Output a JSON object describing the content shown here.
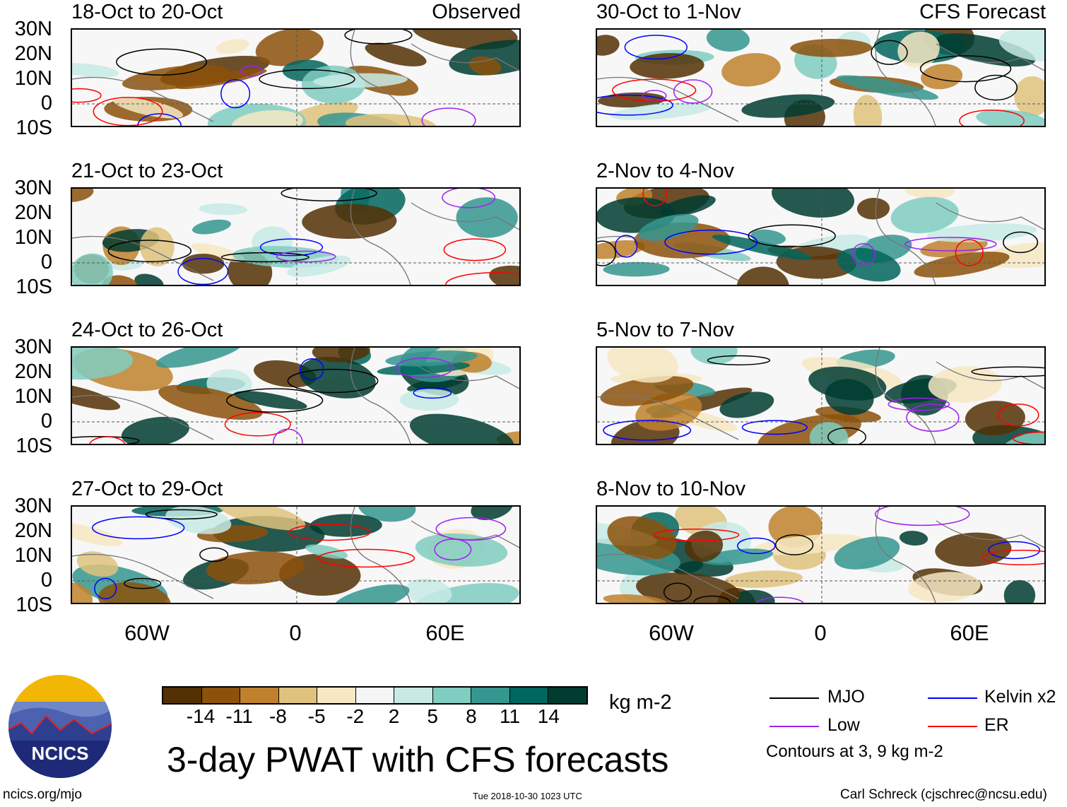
{
  "panels": {
    "left": [
      {
        "title": "18-Oct to 20-Oct",
        "tag": "Observed"
      },
      {
        "title": "21-Oct to 23-Oct"
      },
      {
        "title": "24-Oct to 26-Oct"
      },
      {
        "title": "27-Oct to 29-Oct"
      }
    ],
    "right": [
      {
        "title": "30-Oct to 1-Nov",
        "tag": "CFS Forecast"
      },
      {
        "title": "2-Nov to 4-Nov"
      },
      {
        "title": "5-Nov to 7-Nov"
      },
      {
        "title": "8-Nov to 10-Nov"
      }
    ]
  },
  "lat_labels": [
    "30N",
    "20N",
    "10N",
    "0",
    "10S"
  ],
  "lon_labels": [
    "60W",
    "0",
    "60E"
  ],
  "colorbar": {
    "colors": [
      "#543005",
      "#8c510a",
      "#bf812d",
      "#dfc27d",
      "#f6e8c3",
      "#f5f5f5",
      "#c7eae5",
      "#80cdc1",
      "#35978f",
      "#01665e",
      "#003c30"
    ],
    "levels": [
      "-14",
      "-11",
      "-8",
      "-5",
      "-2",
      "2",
      "5",
      "8",
      "11",
      "14"
    ],
    "units": "kg m-2"
  },
  "title": "3-day PWAT with CFS forecasts",
  "legend": {
    "items": [
      {
        "label": "MJO",
        "color": "#000000"
      },
      {
        "label": "Kelvin x2",
        "color": "#0000ff"
      },
      {
        "label": "Low",
        "color": "#a020f0"
      },
      {
        "label": "ER",
        "color": "#ff0000"
      }
    ],
    "note": "Contours at 3, 9 kg m-2"
  },
  "logo": "NCICS",
  "footer": {
    "url": "ncics.org/mjo",
    "timestamp": "Tue 2018-10-30 1023 UTC",
    "credit": "Carl Schreck (cjschrec@ncsu.edu)"
  }
}
